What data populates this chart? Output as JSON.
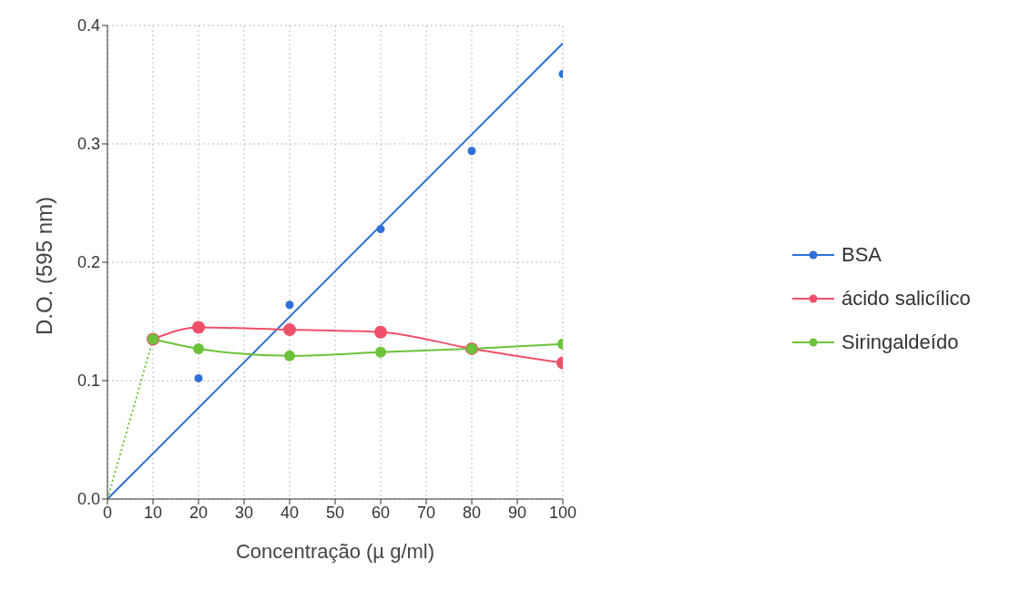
{
  "chart_data": {
    "type": "line",
    "xlabel": "Concentração (µ g/ml)",
    "ylabel": "D.O.  (595 nm)",
    "xlim": [
      0,
      100
    ],
    "xticks": [
      0,
      10,
      20,
      30,
      40,
      50,
      60,
      70,
      80,
      90,
      100
    ],
    "ylim": [
      0,
      0.4
    ],
    "yticks": [
      {
        "value": 0,
        "label": "0.0"
      },
      0.1,
      0.2,
      0.3,
      0.4
    ],
    "grid": true,
    "legend": "right",
    "marker": "circle",
    "line_style": "solid",
    "series": [
      {
        "name": "BSA",
        "type": "scatter",
        "color": "#2f6fd6",
        "x": [
          20,
          40,
          60,
          80,
          100
        ],
        "values": [
          0.102,
          0.164,
          0.228,
          0.294,
          0.359
        ]
      },
      {
        "color": "#2f6fd6",
        "marker": "none",
        "x": [
          0,
          100
        ],
        "values": [
          0,
          0.385
        ]
      },
      {
        "name": "ácido salicílico",
        "color": "#f0506a",
        "x": [
          10,
          20,
          40,
          60,
          80,
          100
        ],
        "values": [
          0.135,
          0.145,
          0.143,
          0.141,
          0.127,
          0.115
        ]
      },
      {
        "name": "Siringaldeído",
        "color": "#6cc23a",
        "x": [
          10,
          20,
          40,
          60,
          80,
          100
        ],
        "values": [
          0.135,
          0.127,
          0.121,
          0.124,
          0.127,
          0.131
        ]
      },
      {
        "color": "#6cc23a",
        "marker": "none",
        "line_style": "dotted",
        "x": [
          0,
          10
        ],
        "values": [
          0,
          0.135
        ]
      }
    ]
  }
}
